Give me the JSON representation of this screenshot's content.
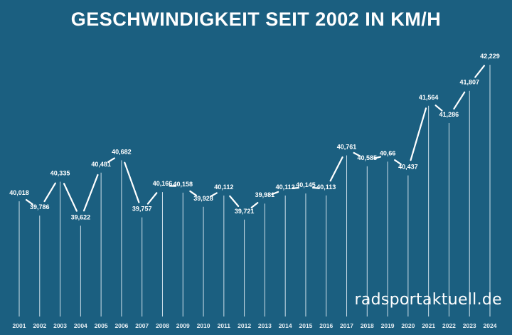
{
  "chart_data": {
    "type": "line",
    "title": "GESCHWINDIGKEIT SEIT 2002 IN KM/H",
    "xlabel": "",
    "ylabel": "",
    "categories": [
      "2001",
      "2002",
      "2003",
      "2004",
      "2005",
      "2006",
      "2007",
      "2008",
      "2009",
      "2010",
      "2011",
      "2012",
      "2013",
      "2014",
      "2015",
      "2016",
      "2017",
      "2018",
      "2019",
      "2020",
      "2021",
      "2022",
      "2023",
      "2024"
    ],
    "values": [
      40.018,
      39.786,
      40.335,
      39.622,
      40.481,
      40.682,
      39.757,
      40.166,
      40.158,
      39.928,
      40.112,
      39.721,
      39.981,
      40.112,
      40.145,
      40.113,
      40.761,
      40.585,
      40.66,
      40.437,
      41.564,
      41.286,
      41.807,
      42.229
    ],
    "labels": [
      "40,018",
      "39,786",
      "40,335",
      "39,622",
      "40,481",
      "40,682",
      "39,757",
      "40,166",
      "40,158",
      "39,928",
      "40,112",
      "39,721",
      "39,981",
      "40,112",
      "40,145",
      "40,113",
      "40,761",
      "40,585",
      "40,66",
      "40,437",
      "41,564",
      "41,286",
      "41,807",
      "42,229"
    ],
    "grid": false,
    "legend": "none"
  },
  "watermark": "radsportaktuell.de",
  "colors": {
    "background": "#1b5f80",
    "line": "#ffffff",
    "stem": "#cfe0ea"
  }
}
